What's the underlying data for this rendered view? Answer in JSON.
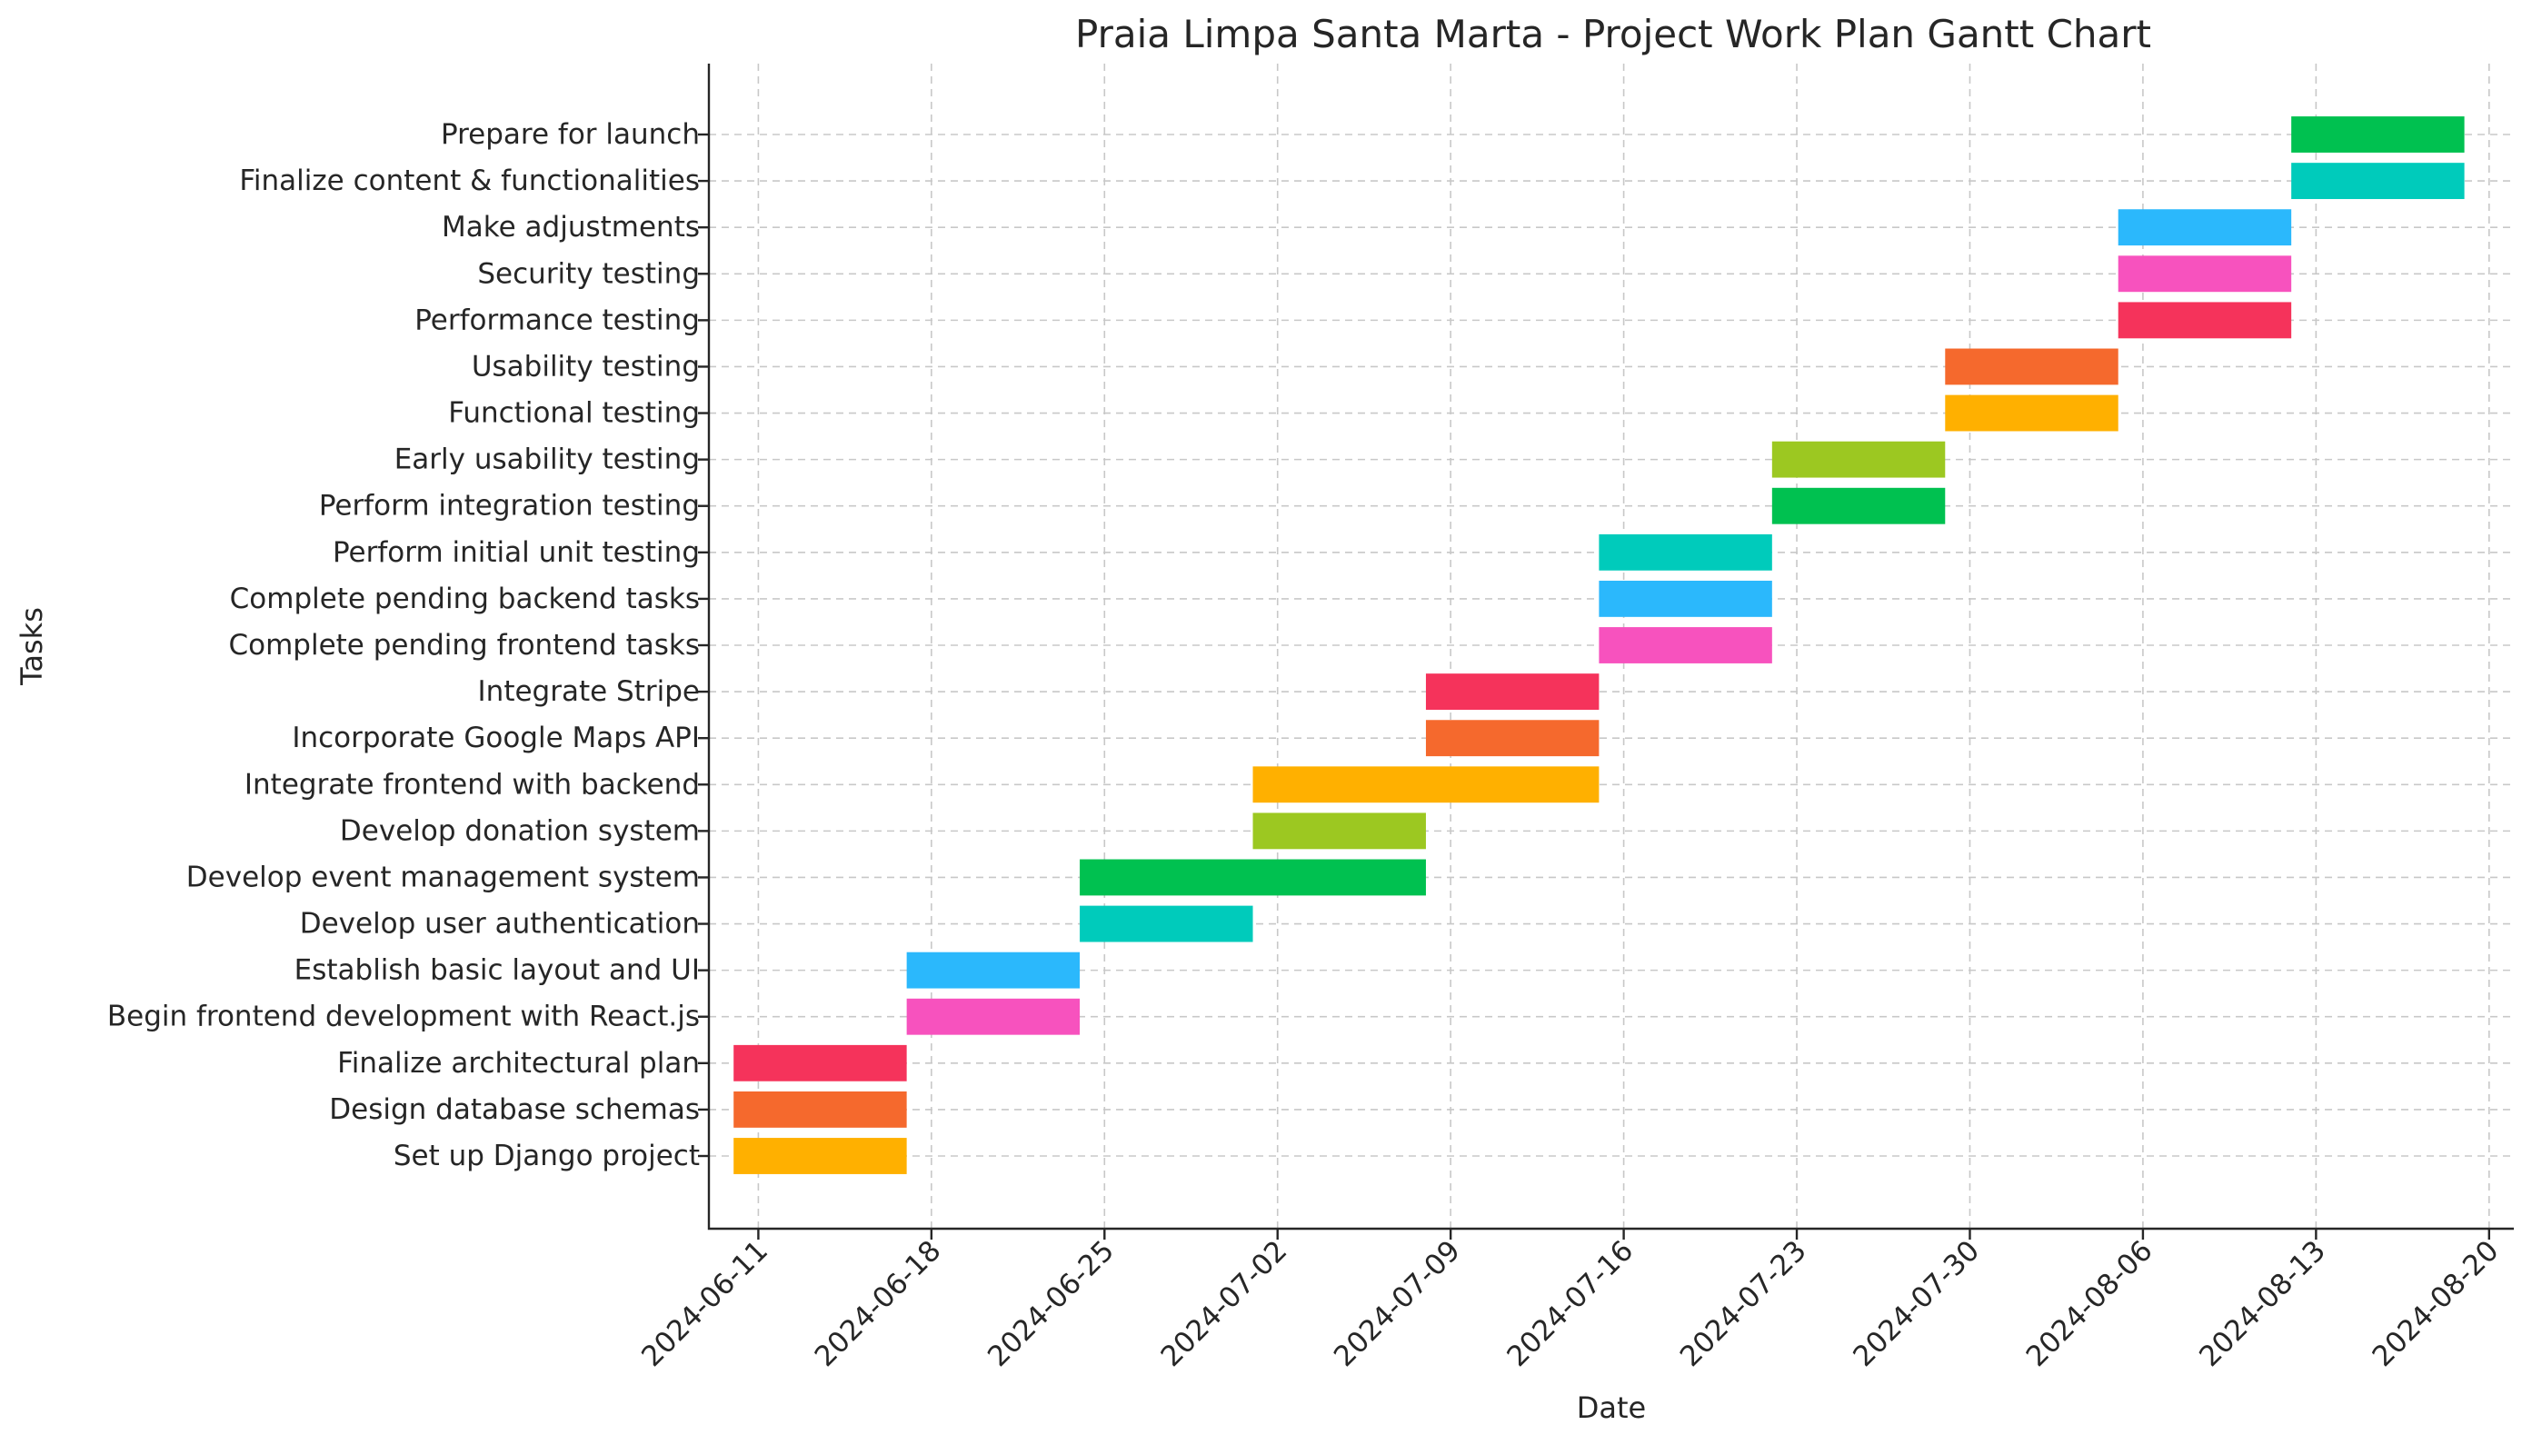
{
  "chart_data": {
    "type": "gantt",
    "title": "Praia Limpa Santa Marta - Project Work Plan Gantt Chart",
    "xlabel": "Date",
    "ylabel": "Tasks",
    "xlim": [
      "2024-06-09",
      "2024-08-21"
    ],
    "x_ticks": [
      "2024-06-11",
      "2024-06-18",
      "2024-06-25",
      "2024-07-02",
      "2024-07-09",
      "2024-07-16",
      "2024-07-23",
      "2024-07-30",
      "2024-08-06",
      "2024-08-13",
      "2024-08-20"
    ],
    "grid": true,
    "tasks": [
      {
        "name": "Set up Django project",
        "start": "2024-06-10",
        "end": "2024-06-17",
        "color": "#ffb000"
      },
      {
        "name": "Design database schemas",
        "start": "2024-06-10",
        "end": "2024-06-17",
        "color": "#f5692d"
      },
      {
        "name": "Finalize architectural plan",
        "start": "2024-06-10",
        "end": "2024-06-17",
        "color": "#f5335b"
      },
      {
        "name": "Begin frontend development with React.js",
        "start": "2024-06-17",
        "end": "2024-06-24",
        "color": "#f752be"
      },
      {
        "name": "Establish basic layout and UI",
        "start": "2024-06-17",
        "end": "2024-06-24",
        "color": "#2bb8fc"
      },
      {
        "name": "Develop user authentication",
        "start": "2024-06-24",
        "end": "2024-07-01",
        "color": "#00cbbb"
      },
      {
        "name": "Develop event management system",
        "start": "2024-06-24",
        "end": "2024-07-08",
        "color": "#00c150"
      },
      {
        "name": "Develop donation system",
        "start": "2024-07-01",
        "end": "2024-07-08",
        "color": "#9cc821"
      },
      {
        "name": "Integrate frontend with backend",
        "start": "2024-07-01",
        "end": "2024-07-15",
        "color": "#ffb000"
      },
      {
        "name": "Incorporate Google Maps API",
        "start": "2024-07-08",
        "end": "2024-07-15",
        "color": "#f5692d"
      },
      {
        "name": "Integrate Stripe",
        "start": "2024-07-08",
        "end": "2024-07-15",
        "color": "#f5335b"
      },
      {
        "name": "Complete pending frontend tasks",
        "start": "2024-07-15",
        "end": "2024-07-22",
        "color": "#f752be"
      },
      {
        "name": "Complete pending backend tasks",
        "start": "2024-07-15",
        "end": "2024-07-22",
        "color": "#2bb8fc"
      },
      {
        "name": "Perform initial unit testing",
        "start": "2024-07-15",
        "end": "2024-07-22",
        "color": "#00cbbb"
      },
      {
        "name": "Perform integration testing",
        "start": "2024-07-22",
        "end": "2024-07-29",
        "color": "#00c150"
      },
      {
        "name": "Early usability testing",
        "start": "2024-07-22",
        "end": "2024-07-29",
        "color": "#9cc821"
      },
      {
        "name": "Functional testing",
        "start": "2024-07-29",
        "end": "2024-08-05",
        "color": "#ffb000"
      },
      {
        "name": "Usability testing",
        "start": "2024-07-29",
        "end": "2024-08-05",
        "color": "#f5692d"
      },
      {
        "name": "Performance testing",
        "start": "2024-08-05",
        "end": "2024-08-12",
        "color": "#f5335b"
      },
      {
        "name": "Security testing",
        "start": "2024-08-05",
        "end": "2024-08-12",
        "color": "#f752be"
      },
      {
        "name": "Make adjustments",
        "start": "2024-08-05",
        "end": "2024-08-12",
        "color": "#2bb8fc"
      },
      {
        "name": "Finalize content & functionalities",
        "start": "2024-08-12",
        "end": "2024-08-19",
        "color": "#00cbbb"
      },
      {
        "name": "Prepare for launch",
        "start": "2024-08-12",
        "end": "2024-08-19",
        "color": "#00c150"
      }
    ]
  }
}
